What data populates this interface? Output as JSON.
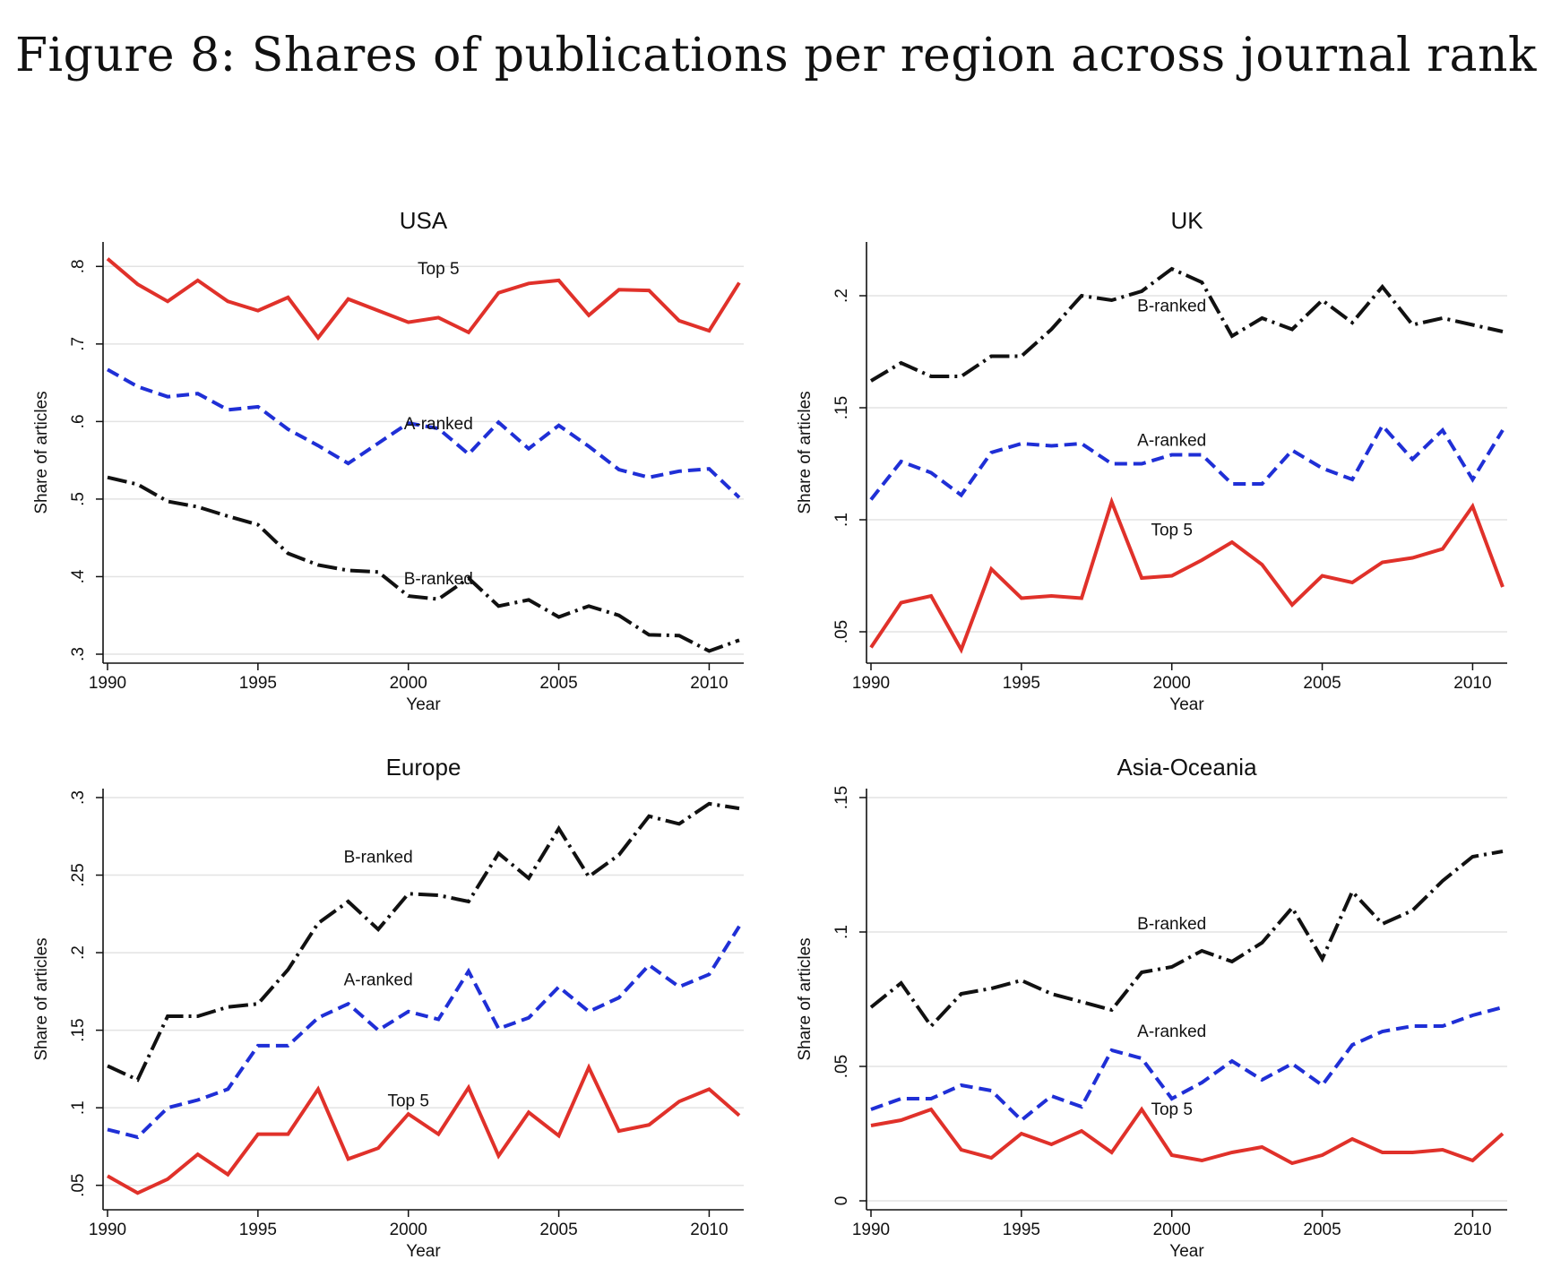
{
  "figure_title": "Figure 8: Shares of publications per region across journal rank",
  "colors": {
    "top5": "#e0312a",
    "a_ranked": "#1f2fd6",
    "b_ranked": "#111111",
    "grid": "#e3e3e3"
  },
  "chart_data": [
    {
      "type": "line",
      "title": "USA",
      "xlabel": "Year",
      "ylabel": "Share of articles",
      "x": [
        1990,
        1991,
        1992,
        1993,
        1994,
        1995,
        1996,
        1997,
        1998,
        1999,
        2000,
        2001,
        2002,
        2003,
        2004,
        2005,
        2006,
        2007,
        2008,
        2009,
        2010,
        2011
      ],
      "xticks": [
        1990,
        1995,
        2000,
        2005,
        2010
      ],
      "xtick_labels": [
        "1990",
        "1995",
        "2000",
        "2005",
        "2010"
      ],
      "xlim": [
        1990,
        2011
      ],
      "ylim": [
        0.3,
        0.82
      ],
      "yticks": [
        0.3,
        0.4,
        0.5,
        0.6,
        0.7,
        0.8
      ],
      "ytick_labels": [
        ".3",
        ".4",
        ".5",
        ".6",
        ".7",
        ".8"
      ],
      "grid": true,
      "series": [
        {
          "name": "Top 5",
          "key": "top5",
          "label_at": [
            2001,
            0.79
          ],
          "values": [
            0.81,
            0.777,
            0.755,
            0.782,
            0.755,
            0.743,
            0.76,
            0.708,
            0.758,
            0.743,
            0.728,
            0.734,
            0.715,
            0.766,
            0.778,
            0.782,
            0.737,
            0.77,
            0.769,
            0.73,
            0.717,
            0.779
          ]
        },
        {
          "name": "A-ranked",
          "key": "a_ranked",
          "label_at": [
            2001,
            0.59
          ],
          "values": [
            0.667,
            0.645,
            0.632,
            0.636,
            0.615,
            0.619,
            0.59,
            0.569,
            0.546,
            0.572,
            0.598,
            0.591,
            0.558,
            0.599,
            0.565,
            0.595,
            0.568,
            0.538,
            0.528,
            0.536,
            0.539,
            0.502
          ]
        },
        {
          "name": "B-ranked",
          "key": "b_ranked",
          "label_at": [
            2001,
            0.39
          ],
          "values": [
            0.528,
            0.519,
            0.497,
            0.49,
            0.478,
            0.467,
            0.43,
            0.415,
            0.408,
            0.406,
            0.375,
            0.371,
            0.398,
            0.362,
            0.37,
            0.348,
            0.362,
            0.35,
            0.325,
            0.324,
            0.304,
            0.318
          ]
        }
      ]
    },
    {
      "type": "line",
      "title": "UK",
      "xlabel": "Year",
      "ylabel": "Share of articles",
      "x": [
        1990,
        1991,
        1992,
        1993,
        1994,
        1995,
        1996,
        1997,
        1998,
        1999,
        2000,
        2001,
        2002,
        2003,
        2004,
        2005,
        2006,
        2007,
        2008,
        2009,
        2010,
        2011
      ],
      "xticks": [
        1990,
        1995,
        2000,
        2005,
        2010
      ],
      "xtick_labels": [
        "1990",
        "1995",
        "2000",
        "2005",
        "2010"
      ],
      "xlim": [
        1990,
        2011
      ],
      "ylim": [
        0.04,
        0.22
      ],
      "yticks": [
        0.05,
        0.1,
        0.15,
        0.2
      ],
      "ytick_labels": [
        ".05",
        ".1",
        ".15",
        ".2"
      ],
      "grid": true,
      "series": [
        {
          "name": "Top 5",
          "key": "top5",
          "label_at": [
            2000,
            0.093
          ],
          "values": [
            0.043,
            0.063,
            0.066,
            0.042,
            0.078,
            0.065,
            0.066,
            0.065,
            0.108,
            0.074,
            0.075,
            0.082,
            0.09,
            0.08,
            0.062,
            0.075,
            0.072,
            0.081,
            0.083,
            0.087,
            0.106,
            0.07
          ]
        },
        {
          "name": "A-ranked",
          "key": "a_ranked",
          "label_at": [
            2000,
            0.133
          ],
          "values": [
            0.109,
            0.126,
            0.121,
            0.111,
            0.13,
            0.134,
            0.133,
            0.134,
            0.125,
            0.125,
            0.129,
            0.129,
            0.116,
            0.116,
            0.131,
            0.123,
            0.118,
            0.142,
            0.127,
            0.14,
            0.118,
            0.14
          ]
        },
        {
          "name": "B-ranked",
          "key": "b_ranked",
          "label_at": [
            2000,
            0.193
          ],
          "values": [
            0.162,
            0.17,
            0.164,
            0.164,
            0.173,
            0.173,
            0.185,
            0.2,
            0.198,
            0.202,
            0.212,
            0.206,
            0.182,
            0.19,
            0.185,
            0.198,
            0.188,
            0.204,
            0.187,
            0.19,
            0.187,
            0.184
          ]
        }
      ]
    },
    {
      "type": "line",
      "title": "Europe",
      "xlabel": "Year",
      "ylabel": "Share of articles",
      "x": [
        1990,
        1991,
        1992,
        1993,
        1994,
        1995,
        1996,
        1997,
        1998,
        1999,
        2000,
        2001,
        2002,
        2003,
        2004,
        2005,
        2006,
        2007,
        2008,
        2009,
        2010,
        2011
      ],
      "xticks": [
        1990,
        1995,
        2000,
        2005,
        2010
      ],
      "xtick_labels": [
        "1990",
        "1995",
        "2000",
        "2005",
        "2010"
      ],
      "xlim": [
        1990,
        2011
      ],
      "ylim": [
        0.04,
        0.3
      ],
      "yticks": [
        0.05,
        0.1,
        0.15,
        0.2,
        0.25,
        0.3
      ],
      "ytick_labels": [
        ".05",
        ".1",
        ".15",
        ".2",
        ".25",
        ".3"
      ],
      "grid": true,
      "series": [
        {
          "name": "Top 5",
          "key": "top5",
          "label_at": [
            2000,
            0.101
          ],
          "values": [
            0.056,
            0.045,
            0.054,
            0.07,
            0.057,
            0.083,
            0.083,
            0.112,
            0.067,
            0.074,
            0.096,
            0.083,
            0.113,
            0.069,
            0.097,
            0.082,
            0.126,
            0.085,
            0.089,
            0.104,
            0.112,
            0.095
          ]
        },
        {
          "name": "A-ranked",
          "key": "a_ranked",
          "label_at": [
            1999,
            0.179
          ],
          "values": [
            0.086,
            0.081,
            0.1,
            0.105,
            0.112,
            0.14,
            0.14,
            0.158,
            0.167,
            0.15,
            0.162,
            0.157,
            0.188,
            0.151,
            0.158,
            0.178,
            0.162,
            0.171,
            0.192,
            0.178,
            0.186,
            0.217
          ]
        },
        {
          "name": "B-ranked",
          "key": "b_ranked",
          "label_at": [
            1999,
            0.258
          ],
          "values": [
            0.127,
            0.118,
            0.159,
            0.159,
            0.165,
            0.167,
            0.189,
            0.219,
            0.233,
            0.215,
            0.238,
            0.237,
            0.233,
            0.264,
            0.248,
            0.28,
            0.249,
            0.263,
            0.288,
            0.283,
            0.296,
            0.293
          ]
        }
      ]
    },
    {
      "type": "line",
      "title": "Asia-Oceania",
      "xlabel": "Year",
      "ylabel": "Share of articles",
      "x": [
        1990,
        1991,
        1992,
        1993,
        1994,
        1995,
        1996,
        1997,
        1998,
        1999,
        2000,
        2001,
        2002,
        2003,
        2004,
        2005,
        2006,
        2007,
        2008,
        2009,
        2010,
        2011
      ],
      "xticks": [
        1990,
        1995,
        2000,
        2005,
        2010
      ],
      "xtick_labels": [
        "1990",
        "1995",
        "2000",
        "2005",
        "2010"
      ],
      "xlim": [
        1990,
        2011
      ],
      "ylim": [
        0,
        0.15
      ],
      "yticks": [
        0,
        0.05,
        0.1,
        0.15
      ],
      "ytick_labels": [
        "0",
        ".05",
        ".1",
        ".15"
      ],
      "grid": true,
      "series": [
        {
          "name": "Top 5",
          "key": "top5",
          "label_at": [
            2000,
            0.032
          ],
          "values": [
            0.028,
            0.03,
            0.034,
            0.019,
            0.016,
            0.025,
            0.021,
            0.026,
            0.018,
            0.034,
            0.017,
            0.015,
            0.018,
            0.02,
            0.014,
            0.017,
            0.023,
            0.018,
            0.018,
            0.019,
            0.015,
            0.025
          ]
        },
        {
          "name": "A-ranked",
          "key": "a_ranked",
          "label_at": [
            2000,
            0.061
          ],
          "values": [
            0.034,
            0.038,
            0.038,
            0.043,
            0.041,
            0.03,
            0.039,
            0.035,
            0.056,
            0.053,
            0.038,
            0.044,
            0.052,
            0.045,
            0.051,
            0.043,
            0.058,
            0.063,
            0.065,
            0.065,
            0.069,
            0.072
          ]
        },
        {
          "name": "B-ranked",
          "key": "b_ranked",
          "label_at": [
            2000,
            0.101
          ],
          "values": [
            0.072,
            0.081,
            0.065,
            0.077,
            0.079,
            0.082,
            0.077,
            0.074,
            0.071,
            0.085,
            0.087,
            0.093,
            0.089,
            0.096,
            0.109,
            0.09,
            0.115,
            0.103,
            0.108,
            0.119,
            0.128,
            0.13
          ]
        }
      ]
    }
  ]
}
